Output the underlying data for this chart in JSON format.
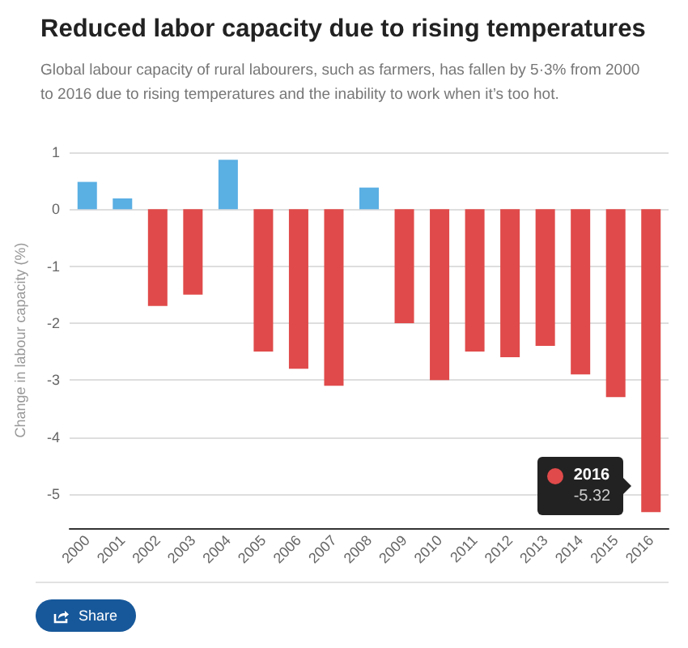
{
  "chart_data": {
    "type": "bar",
    "title": "Reduced labor capacity due to rising temperatures",
    "subtitle": "Global labour capacity of rural labourers, such as farmers, has fallen by 5·3% from 2000 to 2016 due to rising temperatures and the inability to work when it’s too hot.",
    "ylabel": "Change in labour capacity (%)",
    "categories": [
      "2000",
      "2001",
      "2002",
      "2003",
      "2004",
      "2005",
      "2006",
      "2007",
      "2008",
      "2009",
      "2010",
      "2011",
      "2012",
      "2013",
      "2014",
      "2015",
      "2016"
    ],
    "values": [
      0.48,
      0.19,
      -1.7,
      -1.5,
      0.87,
      -2.5,
      -2.8,
      -3.1,
      0.38,
      -2.0,
      -3.0,
      -2.5,
      -2.6,
      -2.4,
      -2.9,
      -3.3,
      -5.32
    ],
    "colors": [
      "#5aafe3",
      "#5aafe3",
      "#e04a4a",
      "#e04a4a",
      "#5aafe3",
      "#e04a4a",
      "#e04a4a",
      "#e04a4a",
      "#5aafe3",
      "#e04a4a",
      "#e04a4a",
      "#e04a4a",
      "#e04a4a",
      "#e04a4a",
      "#e04a4a",
      "#e04a4a",
      "#e04a4a"
    ],
    "ylim": [
      -5.6,
      1
    ],
    "yticks": [
      -5,
      -4,
      -3,
      -2,
      -1,
      0,
      1
    ],
    "grid": "y",
    "annotations": [
      {
        "text": "2016",
        "x": "2016",
        "y": -5.32
      },
      {
        "text": "-5.32",
        "x": "2016",
        "y": -5.32
      },
      "Share"
    ]
  }
}
